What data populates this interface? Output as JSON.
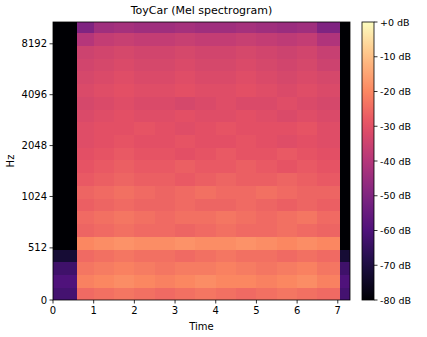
{
  "chart_data": {
    "type": "heatmap",
    "title": "ToyCar (Mel spectrogram)",
    "x_label": "Time",
    "y_label": "Hz",
    "log": "y",
    "xlim": [
      0,
      7.3
    ],
    "xticks": [
      0,
      1,
      2,
      3,
      4,
      5,
      6,
      7
    ],
    "ylim": [
      0,
      11025
    ],
    "yticks": [
      0,
      512,
      1024,
      2048,
      4096,
      8192
    ],
    "x_bins": [
      0,
      0.58,
      1.0,
      1.5,
      2.0,
      2.5,
      3.0,
      3.5,
      4.0,
      4.5,
      5.0,
      5.5,
      6.0,
      6.5,
      7.05,
      7.3
    ],
    "y_bins": [
      0,
      125,
      250,
      375,
      500,
      625,
      750,
      875,
      1000,
      1189,
      1414,
      1682,
      2000,
      2378,
      2828,
      3364,
      4000,
      4757,
      5657,
      6727,
      8000,
      9514,
      11025
    ],
    "values": [
      [
        -62,
        -25,
        -24,
        -23,
        -24,
        -25,
        -24,
        -23,
        -24,
        -25,
        -24,
        -23,
        -24,
        -25,
        -62
      ],
      [
        -60,
        -21,
        -20,
        -19,
        -20,
        -21,
        -20,
        -19,
        -20,
        -20,
        -21,
        -20,
        -19,
        -21,
        -60
      ],
      [
        -63,
        -23,
        -22,
        -21,
        -22,
        -23,
        -22,
        -22,
        -21,
        -22,
        -23,
        -22,
        -21,
        -23,
        -63
      ],
      [
        -72,
        -25,
        -24,
        -23,
        -24,
        -24,
        -25,
        -24,
        -23,
        -24,
        -24,
        -25,
        -24,
        -25,
        -72
      ],
      [
        -80,
        -20,
        -19,
        -18,
        -19,
        -19,
        -18,
        -19,
        -19,
        -18,
        -19,
        -20,
        -19,
        -20,
        -80
      ],
      [
        -80,
        -26,
        -25,
        -24,
        -25,
        -25,
        -26,
        -25,
        -24,
        -25,
        -25,
        -24,
        -25,
        -26,
        -80
      ],
      [
        -80,
        -25,
        -24,
        -23,
        -24,
        -25,
        -24,
        -24,
        -23,
        -24,
        -25,
        -24,
        -23,
        -25,
        -80
      ],
      [
        -80,
        -27,
        -26,
        -25,
        -26,
        -26,
        -25,
        -26,
        -26,
        -25,
        -26,
        -27,
        -26,
        -27,
        -80
      ],
      [
        -80,
        -26,
        -25,
        -24,
        -25,
        -26,
        -25,
        -24,
        -25,
        -25,
        -24,
        -25,
        -26,
        -26,
        -80
      ],
      [
        -80,
        -28,
        -27,
        -26,
        -27,
        -27,
        -28,
        -27,
        -26,
        -27,
        -27,
        -26,
        -27,
        -28,
        -80
      ],
      [
        -80,
        -29,
        -28,
        -27,
        -28,
        -28,
        -27,
        -28,
        -28,
        -27,
        -28,
        -29,
        -28,
        -29,
        -80
      ],
      [
        -80,
        -30,
        -29,
        -28,
        -29,
        -29,
        -30,
        -29,
        -28,
        -29,
        -29,
        -28,
        -29,
        -30,
        -80
      ],
      [
        -80,
        -31,
        -30,
        -29,
        -30,
        -30,
        -29,
        -30,
        -30,
        -29,
        -30,
        -31,
        -30,
        -31,
        -80
      ],
      [
        -80,
        -31,
        -30,
        -30,
        -29,
        -30,
        -31,
        -30,
        -29,
        -30,
        -30,
        -30,
        -29,
        -31,
        -80
      ],
      [
        -80,
        -32,
        -31,
        -30,
        -31,
        -31,
        -30,
        -31,
        -31,
        -30,
        -31,
        -32,
        -31,
        -32,
        -80
      ],
      [
        -80,
        -33,
        -32,
        -31,
        -32,
        -32,
        -33,
        -32,
        -31,
        -32,
        -32,
        -31,
        -32,
        -33,
        -80
      ],
      [
        -80,
        -32,
        -31,
        -30,
        -31,
        -31,
        -30,
        -31,
        -31,
        -30,
        -31,
        -32,
        -31,
        -32,
        -80
      ],
      [
        -80,
        -33,
        -32,
        -31,
        -32,
        -32,
        -31,
        -32,
        -32,
        -31,
        -32,
        -33,
        -32,
        -33,
        -80
      ],
      [
        -80,
        -34,
        -33,
        -32,
        -33,
        -33,
        -32,
        -33,
        -33,
        -32,
        -33,
        -34,
        -33,
        -35,
        -80
      ],
      [
        -80,
        -35,
        -34,
        -33,
        -34,
        -34,
        -33,
        -34,
        -34,
        -33,
        -34,
        -35,
        -34,
        -36,
        -80
      ],
      [
        -80,
        -40,
        -37,
        -36,
        -37,
        -37,
        -36,
        -37,
        -37,
        -36,
        -37,
        -38,
        -37,
        -41,
        -80
      ],
      [
        -80,
        -50,
        -44,
        -43,
        -44,
        -44,
        -43,
        -44,
        -44,
        -43,
        -44,
        -45,
        -44,
        -50,
        -80
      ]
    ],
    "colorbar": {
      "range": [
        -80,
        0
      ],
      "ticks": [
        {
          "value": 0,
          "label": "+0 dB"
        },
        {
          "value": -10,
          "label": "-10 dB"
        },
        {
          "value": -20,
          "label": "-20 dB"
        },
        {
          "value": -30,
          "label": "-30 dB"
        },
        {
          "value": -40,
          "label": "-40 dB"
        },
        {
          "value": -50,
          "label": "-50 dB"
        },
        {
          "value": -60,
          "label": "-60 dB"
        },
        {
          "value": -70,
          "label": "-70 dB"
        },
        {
          "value": -80,
          "label": "-80 dB"
        }
      ]
    }
  }
}
